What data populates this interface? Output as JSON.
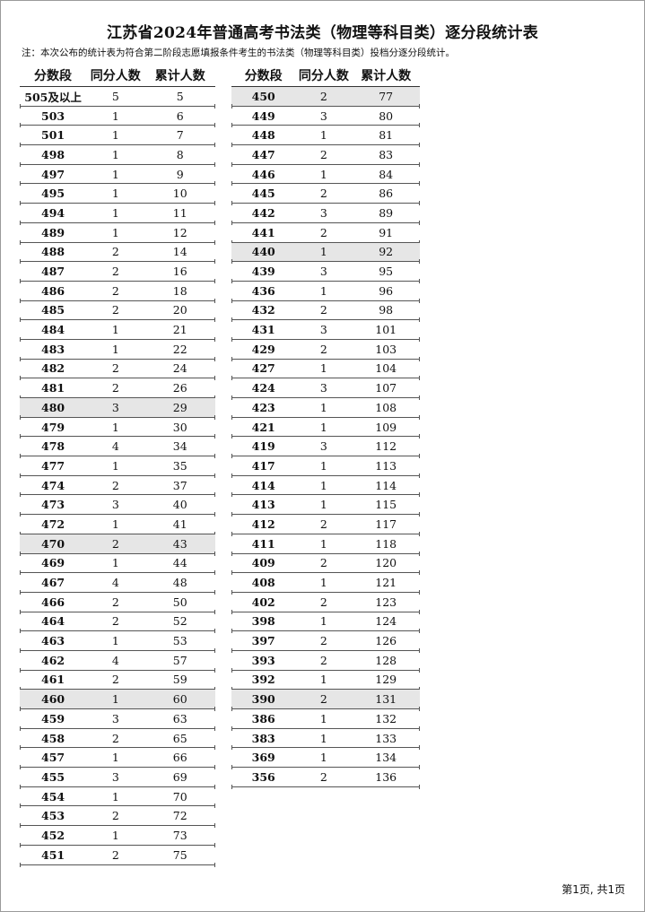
{
  "title": "江苏省2024年普通高考书法类（物理等科目类）逐分段统计表",
  "note": "注：本次公布的统计表为符合第二阶段志愿填报条件考生的书法类（物理等科目类）投档分逐分段统计。",
  "headers": [
    "分数段",
    "同分人数",
    "累计人数"
  ],
  "shade_color": "#e6e6e6",
  "left_rows": [
    [
      "505及以上",
      "5",
      "5"
    ],
    [
      "503",
      "1",
      "6"
    ],
    [
      "501",
      "1",
      "7"
    ],
    [
      "498",
      "1",
      "8"
    ],
    [
      "497",
      "1",
      "9"
    ],
    [
      "495",
      "1",
      "10"
    ],
    [
      "494",
      "1",
      "11"
    ],
    [
      "489",
      "1",
      "12"
    ],
    [
      "488",
      "2",
      "14"
    ],
    [
      "487",
      "2",
      "16"
    ],
    [
      "486",
      "2",
      "18"
    ],
    [
      "485",
      "2",
      "20"
    ],
    [
      "484",
      "1",
      "21"
    ],
    [
      "483",
      "1",
      "22"
    ],
    [
      "482",
      "2",
      "24"
    ],
    [
      "481",
      "2",
      "26"
    ],
    [
      "480",
      "3",
      "29"
    ],
    [
      "479",
      "1",
      "30"
    ],
    [
      "478",
      "4",
      "34"
    ],
    [
      "477",
      "1",
      "35"
    ],
    [
      "474",
      "2",
      "37"
    ],
    [
      "473",
      "3",
      "40"
    ],
    [
      "472",
      "1",
      "41"
    ],
    [
      "470",
      "2",
      "43"
    ],
    [
      "469",
      "1",
      "44"
    ],
    [
      "467",
      "4",
      "48"
    ],
    [
      "466",
      "2",
      "50"
    ],
    [
      "464",
      "2",
      "52"
    ],
    [
      "463",
      "1",
      "53"
    ],
    [
      "462",
      "4",
      "57"
    ],
    [
      "461",
      "2",
      "59"
    ],
    [
      "460",
      "1",
      "60"
    ],
    [
      "459",
      "3",
      "63"
    ],
    [
      "458",
      "2",
      "65"
    ],
    [
      "457",
      "1",
      "66"
    ],
    [
      "455",
      "3",
      "69"
    ],
    [
      "454",
      "1",
      "70"
    ],
    [
      "453",
      "2",
      "72"
    ],
    [
      "452",
      "1",
      "73"
    ],
    [
      "451",
      "2",
      "75"
    ]
  ],
  "left_shaded": [
    "480",
    "470",
    "460"
  ],
  "right_rows": [
    [
      "450",
      "2",
      "77"
    ],
    [
      "449",
      "3",
      "80"
    ],
    [
      "448",
      "1",
      "81"
    ],
    [
      "447",
      "2",
      "83"
    ],
    [
      "446",
      "1",
      "84"
    ],
    [
      "445",
      "2",
      "86"
    ],
    [
      "442",
      "3",
      "89"
    ],
    [
      "441",
      "2",
      "91"
    ],
    [
      "440",
      "1",
      "92"
    ],
    [
      "439",
      "3",
      "95"
    ],
    [
      "436",
      "1",
      "96"
    ],
    [
      "432",
      "2",
      "98"
    ],
    [
      "431",
      "3",
      "101"
    ],
    [
      "429",
      "2",
      "103"
    ],
    [
      "427",
      "1",
      "104"
    ],
    [
      "424",
      "3",
      "107"
    ],
    [
      "423",
      "1",
      "108"
    ],
    [
      "421",
      "1",
      "109"
    ],
    [
      "419",
      "3",
      "112"
    ],
    [
      "417",
      "1",
      "113"
    ],
    [
      "414",
      "1",
      "114"
    ],
    [
      "413",
      "1",
      "115"
    ],
    [
      "412",
      "2",
      "117"
    ],
    [
      "411",
      "1",
      "118"
    ],
    [
      "409",
      "2",
      "120"
    ],
    [
      "408",
      "1",
      "121"
    ],
    [
      "402",
      "2",
      "123"
    ],
    [
      "398",
      "1",
      "124"
    ],
    [
      "397",
      "2",
      "126"
    ],
    [
      "393",
      "2",
      "128"
    ],
    [
      "392",
      "1",
      "129"
    ],
    [
      "390",
      "2",
      "131"
    ],
    [
      "386",
      "1",
      "132"
    ],
    [
      "383",
      "1",
      "133"
    ],
    [
      "369",
      "1",
      "134"
    ],
    [
      "356",
      "2",
      "136"
    ]
  ],
  "right_shaded": [
    "450",
    "440",
    "390"
  ],
  "footer": "第1页, 共1页"
}
